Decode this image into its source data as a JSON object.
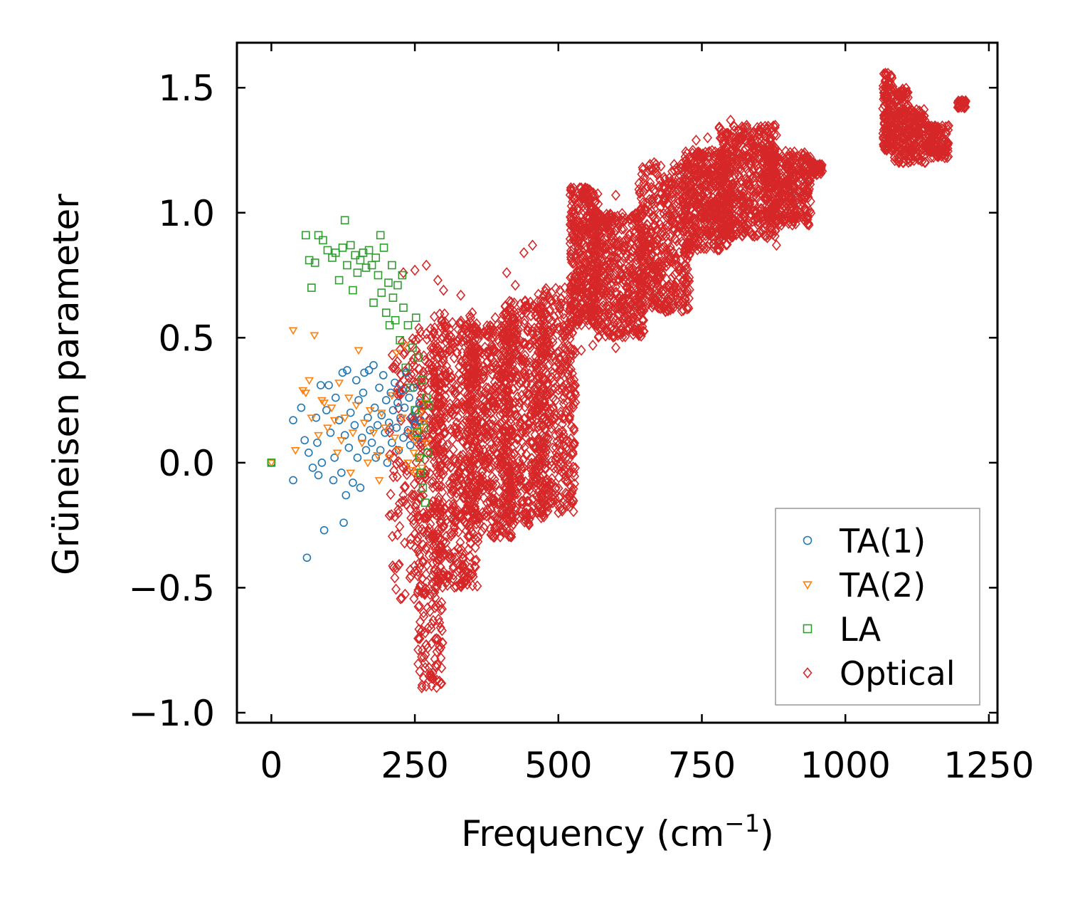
{
  "chart_data": {
    "type": "scatter",
    "xlabel": "Frequency (cm",
    "xlabel_sup": "−1",
    "xlabel_end": ")",
    "ylabel": "Grüneisen parameter",
    "xlim": [
      -60,
      1265
    ],
    "ylim": [
      -1.04,
      1.68
    ],
    "xticks": [
      0,
      250,
      500,
      750,
      1000,
      1250
    ],
    "xtick_labels": [
      "0",
      "250",
      "500",
      "750",
      "1000",
      "1250"
    ],
    "yticks": [
      -1.0,
      -0.5,
      0.0,
      0.5,
      1.0,
      1.5
    ],
    "ytick_labels": [
      "−1.0",
      "−0.5",
      "0.0",
      "0.5",
      "1.0",
      "1.5"
    ],
    "legend_position": "lower-right",
    "series": [
      {
        "name": "TA(1)",
        "marker": "circle",
        "color": "#1f77b4",
        "points": [
          [
            0,
            0.0
          ],
          [
            38,
            -0.07
          ],
          [
            38,
            0.17
          ],
          [
            52,
            0.22
          ],
          [
            58,
            0.09
          ],
          [
            62,
            -0.38
          ],
          [
            65,
            0.04
          ],
          [
            72,
            -0.02
          ],
          [
            78,
            0.18
          ],
          [
            80,
            0.08
          ],
          [
            82,
            -0.05
          ],
          [
            86,
            0.31
          ],
          [
            88,
            0.0
          ],
          [
            92,
            -0.27
          ],
          [
            96,
            0.21
          ],
          [
            100,
            0.31
          ],
          [
            103,
            0.12
          ],
          [
            108,
            -0.07
          ],
          [
            110,
            0.02
          ],
          [
            112,
            0.26
          ],
          [
            118,
            0.17
          ],
          [
            122,
            -0.04
          ],
          [
            124,
            0.36
          ],
          [
            126,
            -0.24
          ],
          [
            128,
            0.11
          ],
          [
            130,
            -0.13
          ],
          [
            132,
            0.37
          ],
          [
            135,
            0.06
          ],
          [
            138,
            0.2
          ],
          [
            142,
            -0.08
          ],
          [
            145,
            0.15
          ],
          [
            148,
            0.33
          ],
          [
            150,
            0.02
          ],
          [
            152,
            0.25
          ],
          [
            155,
            -0.1
          ],
          [
            158,
            0.1
          ],
          [
            160,
            0.28
          ],
          [
            162,
            0.36
          ],
          [
            165,
            0.05
          ],
          [
            168,
            0.18
          ],
          [
            170,
            0.37
          ],
          [
            172,
            0.13
          ],
          [
            175,
            0.08
          ],
          [
            178,
            0.39
          ],
          [
            180,
            0.22
          ],
          [
            182,
            0.02
          ],
          [
            185,
            0.15
          ],
          [
            188,
            0.3
          ],
          [
            190,
            0.05
          ],
          [
            192,
            0.19
          ],
          [
            195,
            0.35
          ],
          [
            198,
            0.12
          ],
          [
            200,
            0.25
          ],
          [
            202,
            0.0
          ],
          [
            205,
            0.16
          ],
          [
            208,
            0.28
          ],
          [
            210,
            0.08
          ],
          [
            212,
            0.21
          ],
          [
            215,
            0.32
          ],
          [
            218,
            0.14
          ],
          [
            220,
            0.24
          ],
          [
            222,
            0.05
          ],
          [
            225,
            0.18
          ],
          [
            228,
            0.29
          ],
          [
            230,
            0.1
          ],
          [
            232,
            0.22
          ],
          [
            235,
            0.36
          ],
          [
            238,
            0.13
          ],
          [
            240,
            0.26
          ],
          [
            242,
            0.07
          ],
          [
            245,
            0.18
          ],
          [
            248,
            0.3
          ],
          [
            250,
            0.15
          ],
          [
            252,
            0.21
          ],
          [
            255,
            0.1
          ],
          [
            258,
            0.24
          ],
          [
            260,
            0.17
          ]
        ]
      },
      {
        "name": "TA(2)",
        "marker": "triangle-down",
        "color": "#ff7f0e",
        "points": [
          [
            0,
            0.0
          ],
          [
            38,
            0.53
          ],
          [
            42,
            0.05
          ],
          [
            55,
            0.29
          ],
          [
            60,
            0.28
          ],
          [
            66,
            0.33
          ],
          [
            70,
            0.18
          ],
          [
            75,
            0.51
          ],
          [
            82,
            0.11
          ],
          [
            88,
            0.25
          ],
          [
            92,
            0.24
          ],
          [
            98,
            0.14
          ],
          [
            105,
            0.22
          ],
          [
            110,
            0.17
          ],
          [
            115,
            0.04
          ],
          [
            118,
            0.32
          ],
          [
            122,
            0.09
          ],
          [
            128,
            0.18
          ],
          [
            135,
            0.26
          ],
          [
            138,
            -0.04
          ],
          [
            142,
            0.12
          ],
          [
            148,
            0.23
          ],
          [
            152,
            0.45
          ],
          [
            158,
            0.08
          ],
          [
            162,
            0.16
          ],
          [
            168,
            0.0
          ],
          [
            172,
            0.21
          ],
          [
            178,
            0.12
          ],
          [
            185,
            0.03
          ],
          [
            188,
            -0.07
          ],
          [
            192,
            0.2
          ],
          [
            198,
            0.14
          ],
          [
            205,
            0.02
          ],
          [
            210,
            0.27
          ],
          [
            215,
            0.1
          ],
          [
            218,
            0.44
          ],
          [
            222,
            0.05
          ],
          [
            228,
            0.18
          ],
          [
            232,
            0.47
          ],
          [
            238,
            0.0
          ],
          [
            242,
            0.12
          ],
          [
            245,
            -0.03
          ],
          [
            248,
            0.04
          ],
          [
            250,
            0.09
          ],
          [
            252,
            -0.04
          ],
          [
            255,
            0.02
          ],
          [
            258,
            0.13
          ],
          [
            260,
            0.2
          ],
          [
            262,
            -0.02
          ],
          [
            265,
            0.16
          ],
          [
            268,
            0.24
          ],
          [
            270,
            0.08
          ]
        ]
      },
      {
        "name": "LA",
        "marker": "square",
        "color": "#2ca02c",
        "points": [
          [
            0,
            0.0
          ],
          [
            60,
            0.91
          ],
          [
            66,
            0.81
          ],
          [
            70,
            0.7
          ],
          [
            76,
            0.8
          ],
          [
            82,
            0.91
          ],
          [
            90,
            0.89
          ],
          [
            98,
            0.85
          ],
          [
            106,
            0.82
          ],
          [
            112,
            0.84
          ],
          [
            118,
            0.73
          ],
          [
            124,
            0.86
          ],
          [
            128,
            0.97
          ],
          [
            132,
            0.79
          ],
          [
            138,
            0.87
          ],
          [
            142,
            0.69
          ],
          [
            146,
            0.83
          ],
          [
            150,
            0.76
          ],
          [
            155,
            0.81
          ],
          [
            160,
            0.84
          ],
          [
            165,
            0.78
          ],
          [
            170,
            0.85
          ],
          [
            175,
            0.79
          ],
          [
            178,
            0.64
          ],
          [
            182,
            0.82
          ],
          [
            186,
            0.75
          ],
          [
            190,
            0.91
          ],
          [
            192,
            0.68
          ],
          [
            196,
            0.86
          ],
          [
            200,
            0.6
          ],
          [
            204,
            0.72
          ],
          [
            206,
            0.55
          ],
          [
            210,
            0.79
          ],
          [
            212,
            0.66
          ],
          [
            216,
            0.57
          ],
          [
            220,
            0.71
          ],
          [
            224,
            0.49
          ],
          [
            228,
            0.75
          ],
          [
            230,
            0.62
          ],
          [
            234,
            0.38
          ],
          [
            238,
            0.55
          ],
          [
            242,
            0.3
          ],
          [
            246,
            0.46
          ],
          [
            250,
            0.21
          ],
          [
            252,
            0.58
          ],
          [
            254,
            0.12
          ],
          [
            256,
            0.42
          ],
          [
            258,
            0.02
          ],
          [
            260,
            -0.04
          ],
          [
            262,
            0.33
          ],
          [
            264,
            -0.1
          ],
          [
            266,
            0.14
          ],
          [
            268,
            -0.16
          ],
          [
            270,
            0.26
          ],
          [
            272,
            0.04
          ],
          [
            274,
            0.23
          ]
        ]
      },
      {
        "name": "Optical",
        "marker": "diamond",
        "color": "#d62728",
        "points": [],
        "cloud_bands": [
          {
            "x": [
              205,
              270
            ],
            "y": [
              -0.55,
              0.5
            ],
            "n": 140
          },
          {
            "x": [
              255,
              300
            ],
            "y": [
              -0.9,
              0.55
            ],
            "n": 260
          },
          {
            "x": [
              280,
              360
            ],
            "y": [
              -0.5,
              0.6
            ],
            "n": 520
          },
          {
            "x": [
              340,
              420
            ],
            "y": [
              -0.3,
              0.55
            ],
            "n": 520
          },
          {
            "x": [
              400,
              480
            ],
            "y": [
              -0.25,
              0.65
            ],
            "n": 480
          },
          {
            "x": [
              460,
              530
            ],
            "y": [
              -0.2,
              0.7
            ],
            "n": 420
          },
          {
            "x": [
              520,
              570
            ],
            "y": [
              0.55,
              1.1
            ],
            "n": 380
          },
          {
            "x": [
              560,
              650
            ],
            "y": [
              0.5,
              1.0
            ],
            "n": 460
          },
          {
            "x": [
              640,
              730
            ],
            "y": [
              0.6,
              1.2
            ],
            "n": 460
          },
          {
            "x": [
              720,
              800
            ],
            "y": [
              0.85,
              1.25
            ],
            "n": 420
          },
          {
            "x": [
              780,
              880
            ],
            "y": [
              0.9,
              1.35
            ],
            "n": 480
          },
          {
            "x": [
              860,
              940
            ],
            "y": [
              0.95,
              1.25
            ],
            "n": 360
          },
          {
            "x": [
              940,
              960
            ],
            "y": [
              1.15,
              1.2
            ],
            "n": 60
          },
          {
            "x": [
              1065,
              1085
            ],
            "y": [
              1.25,
              1.56
            ],
            "n": 140
          },
          {
            "x": [
              1085,
              1110
            ],
            "y": [
              1.2,
              1.5
            ],
            "n": 140
          },
          {
            "x": [
              1110,
              1140
            ],
            "y": [
              1.2,
              1.42
            ],
            "n": 120
          },
          {
            "x": [
              1140,
              1180
            ],
            "y": [
              1.22,
              1.35
            ],
            "n": 120
          },
          {
            "x": [
              1195,
              1210
            ],
            "y": [
              1.42,
              1.45
            ],
            "n": 40
          }
        ],
        "sparse_points": [
          [
            255,
            -0.3
          ],
          [
            258,
            -0.42
          ],
          [
            262,
            -0.52
          ],
          [
            265,
            -0.6
          ],
          [
            268,
            -0.68
          ],
          [
            263,
            -0.75
          ],
          [
            268,
            -0.82
          ],
          [
            262,
            -0.9
          ],
          [
            285,
            -0.58
          ],
          [
            300,
            -0.45
          ],
          [
            320,
            -0.38
          ],
          [
            345,
            -0.25
          ],
          [
            360,
            -0.3
          ],
          [
            410,
            -0.2
          ],
          [
            445,
            -0.18
          ],
          [
            470,
            -0.22
          ],
          [
            500,
            -0.2
          ],
          [
            540,
            0.45
          ],
          [
            560,
            0.47
          ],
          [
            600,
            0.46
          ],
          [
            605,
            0.52
          ],
          [
            630,
            0.53
          ],
          [
            690,
            0.61
          ],
          [
            700,
            0.63
          ],
          [
            720,
            0.69
          ],
          [
            440,
            0.84
          ],
          [
            455,
            0.87
          ],
          [
            410,
            0.76
          ],
          [
            425,
            0.71
          ],
          [
            600,
            1.07
          ],
          [
            660,
            1.12
          ],
          [
            740,
            1.29
          ],
          [
            760,
            1.3
          ],
          [
            800,
            1.37
          ],
          [
            840,
            1.24
          ],
          [
            880,
            1.31
          ],
          [
            880,
            0.87
          ],
          [
            850,
            0.92
          ],
          [
            780,
            0.92
          ],
          [
            700,
            0.96
          ],
          [
            590,
            0.78
          ],
          [
            230,
            0.76
          ],
          [
            250,
            0.77
          ],
          [
            270,
            0.79
          ],
          [
            290,
            0.73
          ],
          [
            300,
            0.69
          ],
          [
            330,
            0.67
          ],
          [
            350,
            0.6
          ],
          [
            390,
            0.58
          ],
          [
            340,
            0.49
          ]
        ]
      }
    ]
  }
}
